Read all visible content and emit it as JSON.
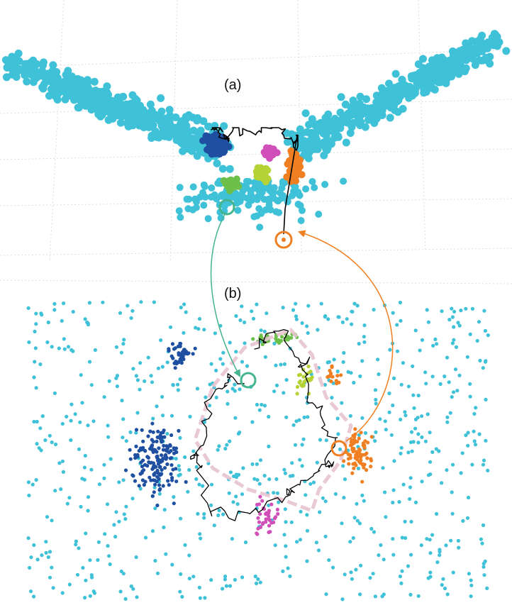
{
  "figure": {
    "panel_a_label": "(a)",
    "panel_b_label": "(b)"
  },
  "colors": {
    "background_points": "#3fc1d8",
    "cluster_blue": "#1f4fa0",
    "cluster_green": "#6cc04a",
    "cluster_yellow_green": "#b5d335",
    "cluster_magenta": "#d04fb8",
    "cluster_orange": "#f07f22",
    "path_line": "#000000",
    "marker_teal": "#46b48c",
    "marker_orange": "#f07f22",
    "highlight_pink": "#e7c3cf",
    "grid": "#dddddd"
  },
  "icons": {
    "start_marker": "ring-marker",
    "end_marker": "ring-marker"
  }
}
